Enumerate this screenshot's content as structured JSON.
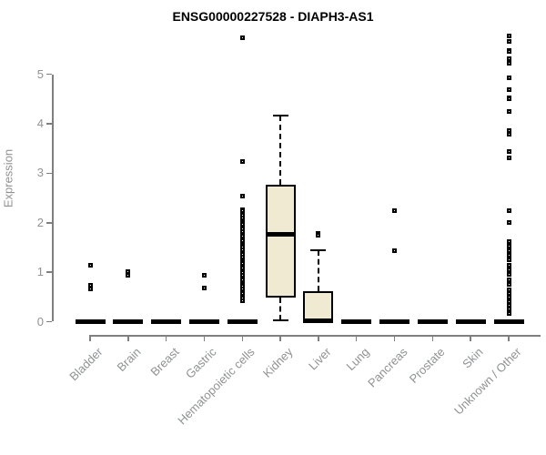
{
  "chart_data": {
    "type": "box",
    "title": "ENSG00000227528 - DIAPH3-AS1",
    "ylabel": "Expression",
    "xlabel": "",
    "ylim": [
      0,
      5
    ],
    "yticks": [
      0,
      1,
      2,
      3,
      4,
      5
    ],
    "grid": false,
    "legend": "none",
    "categories": [
      "Bladder",
      "Brain",
      "Breast",
      "Gastric",
      "Hematopoietic cells",
      "Kidney",
      "Liver",
      "Lung",
      "Pancreas",
      "Prostate",
      "Skin",
      "Unknown / Other"
    ],
    "boxes": [
      {
        "category": "Bladder",
        "q1": 0,
        "median": 0,
        "q3": 0,
        "whisker_low": 0,
        "whisker_high": 0,
        "outliers": [
          1.14,
          0.73,
          0.67
        ]
      },
      {
        "category": "Brain",
        "q1": 0,
        "median": 0,
        "q3": 0,
        "whisker_low": 0,
        "whisker_high": 0,
        "outliers": [
          1.01,
          0.93
        ]
      },
      {
        "category": "Breast",
        "q1": 0,
        "median": 0,
        "q3": 0,
        "whisker_low": 0,
        "whisker_high": 0,
        "outliers": []
      },
      {
        "category": "Gastric",
        "q1": 0,
        "median": 0,
        "q3": 0,
        "whisker_low": 0,
        "whisker_high": 0,
        "outliers": [
          0.93,
          0.68
        ]
      },
      {
        "category": "Hematopoietic cells",
        "q1": 0,
        "median": 0,
        "q3": 0,
        "whisker_low": 0,
        "whisker_high": 0,
        "outliers": [
          5.74,
          3.23,
          2.53,
          2.27,
          2.24,
          2.19,
          2.15,
          2.1,
          2.05,
          2.01,
          1.96,
          1.91,
          1.87,
          1.82,
          1.77,
          1.73,
          1.68,
          1.63,
          1.59,
          1.54,
          1.5,
          1.45,
          1.4,
          1.36,
          1.31,
          1.26,
          1.22,
          1.17,
          1.12,
          1.08,
          1.03,
          0.99,
          0.94,
          0.89,
          0.85,
          0.8,
          0.75,
          0.71,
          0.66,
          0.61,
          0.57,
          0.52,
          0.47,
          0.43
        ]
      },
      {
        "category": "Kidney",
        "q1": 0.48,
        "median": 1.77,
        "q3": 2.76,
        "whisker_low": 0.03,
        "whisker_high": 4.17,
        "outliers": []
      },
      {
        "category": "Liver",
        "q1": 0,
        "median": 0.02,
        "q3": 0.62,
        "whisker_low": 0,
        "whisker_high": 1.44,
        "outliers": [
          1.78,
          1.74
        ]
      },
      {
        "category": "Lung",
        "q1": 0,
        "median": 0,
        "q3": 0,
        "whisker_low": 0,
        "whisker_high": 0,
        "outliers": []
      },
      {
        "category": "Pancreas",
        "q1": 0,
        "median": 0,
        "q3": 0,
        "whisker_low": 0,
        "whisker_high": 0,
        "outliers": [
          2.24,
          1.44
        ]
      },
      {
        "category": "Prostate",
        "q1": 0,
        "median": 0,
        "q3": 0,
        "whisker_low": 0,
        "whisker_high": 0,
        "outliers": []
      },
      {
        "category": "Skin",
        "q1": 0,
        "median": 0,
        "q3": 0,
        "whisker_low": 0,
        "whisker_high": 0,
        "outliers": []
      },
      {
        "category": "Unknown / Other",
        "q1": 0,
        "median": 0,
        "q3": 0,
        "whisker_low": 0,
        "whisker_high": 0,
        "outliers": [
          5.78,
          5.67,
          5.48,
          5.46,
          5.32,
          5.23,
          4.93,
          4.69,
          4.53,
          4.5,
          4.25,
          3.87,
          3.79,
          3.44,
          3.31,
          2.24,
          2.0,
          1.61,
          1.52,
          1.43,
          1.34,
          1.25,
          1.14,
          1.05,
          0.96,
          0.85,
          0.76,
          0.65,
          0.57,
          0.49,
          0.41,
          0.33,
          0.25,
          0.16
        ]
      }
    ],
    "colors": {
      "box_fill": "#F0EAD2",
      "box_border": "#000000",
      "median": "#000000",
      "whisker": "#000000",
      "outlier": "#000000",
      "axis": "#7F7F7F",
      "tick_label": "#8F9193",
      "title": "#000000",
      "background": "#FFFFFF"
    }
  }
}
